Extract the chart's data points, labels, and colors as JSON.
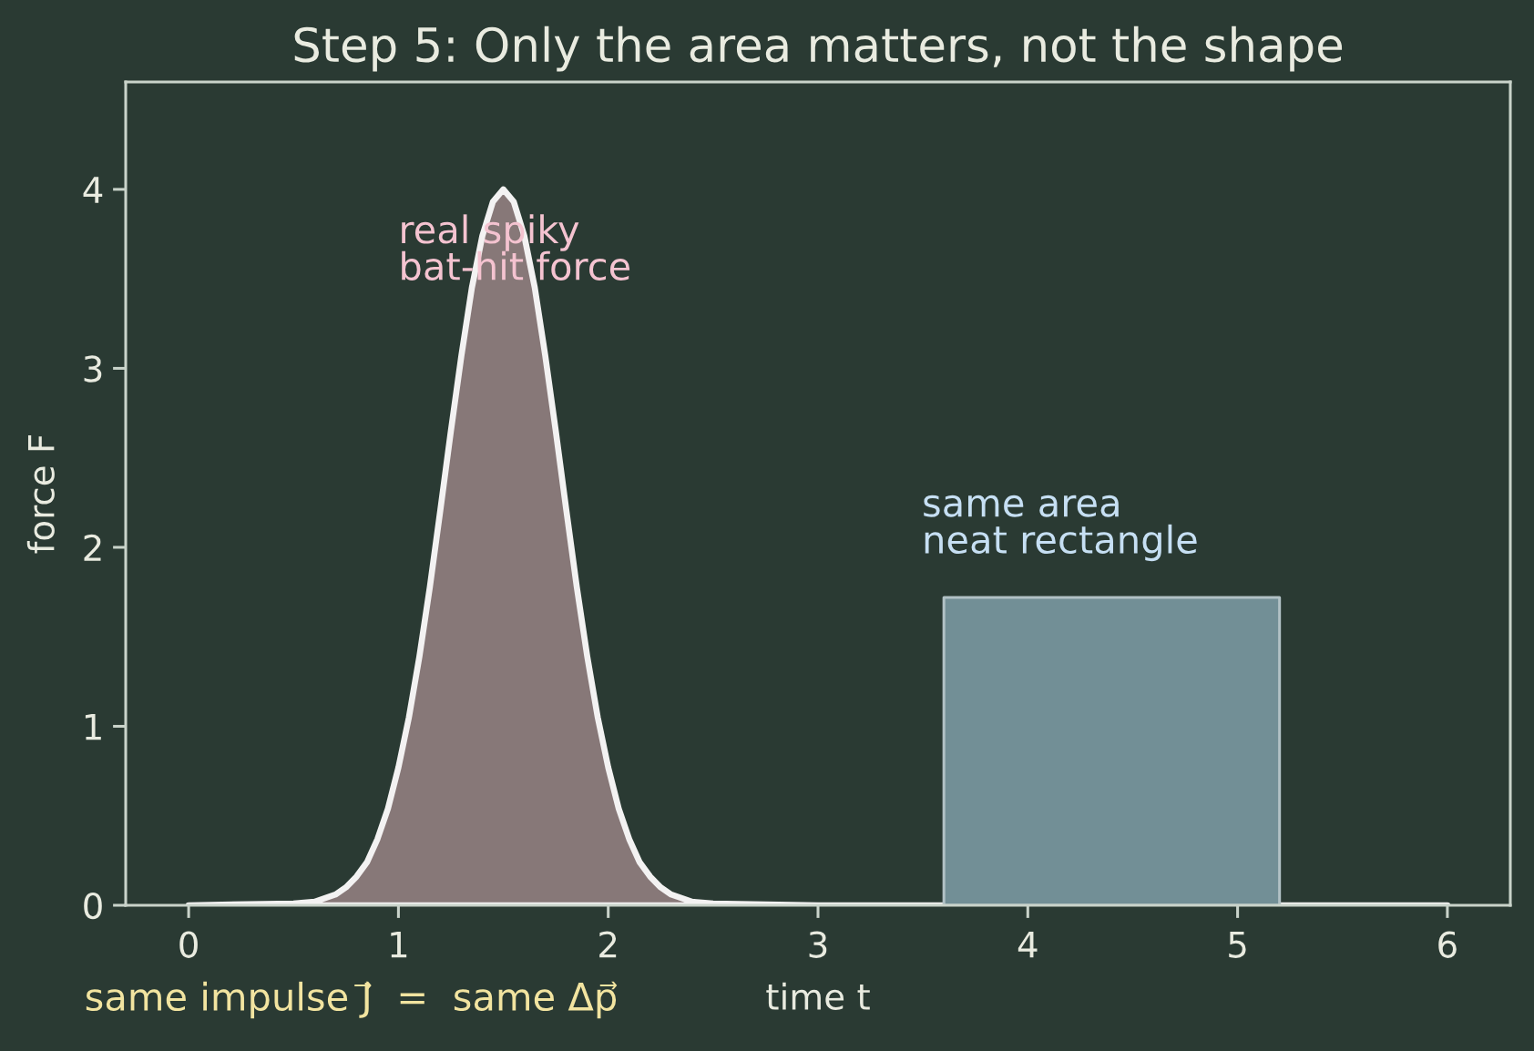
{
  "chart_data": {
    "type": "area",
    "title": "Step 5: Only the area matters, not the shape",
    "xlabel": "time t",
    "ylabel": "force F",
    "xlim": [
      -0.3,
      6.3
    ],
    "ylim": [
      0,
      4.6
    ],
    "xticks": [
      0,
      1,
      2,
      3,
      4,
      5,
      6
    ],
    "yticks": [
      0,
      1,
      2,
      3,
      4
    ],
    "series": [
      {
        "color": "#877878",
        "x": [
          0,
          0.5,
          0.6,
          0.7,
          0.75,
          0.8,
          0.85,
          0.9,
          0.95,
          1.0,
          1.05,
          1.1,
          1.15,
          1.2,
          1.25,
          1.3,
          1.35,
          1.4,
          1.45,
          1.5,
          1.55,
          1.6,
          1.65,
          1.7,
          1.75,
          1.8,
          1.85,
          1.9,
          1.95,
          2.0,
          2.05,
          2.1,
          2.15,
          2.2,
          2.25,
          2.3,
          2.4,
          2.5,
          3.0,
          6.0
        ],
        "values": [
          0,
          0.01,
          0.02,
          0.06,
          0.1,
          0.16,
          0.24,
          0.37,
          0.54,
          0.77,
          1.05,
          1.39,
          1.78,
          2.21,
          2.65,
          3.07,
          3.45,
          3.74,
          3.93,
          4.0,
          3.93,
          3.74,
          3.45,
          3.07,
          2.65,
          2.21,
          1.78,
          1.39,
          1.05,
          0.77,
          0.54,
          0.37,
          0.24,
          0.16,
          0.1,
          0.06,
          0.02,
          0.01,
          0,
          0
        ]
      },
      {
        "color": "#728f96",
        "x": [
          3.6,
          3.6,
          5.2,
          5.2
        ],
        "values": [
          0,
          1.72,
          1.72,
          0
        ]
      }
    ],
    "annotations": [
      "real spiky\nbat-hit force",
      "same area\nneat rectangle",
      "same impulse J⃗  =  same Δp⃗"
    ]
  }
}
